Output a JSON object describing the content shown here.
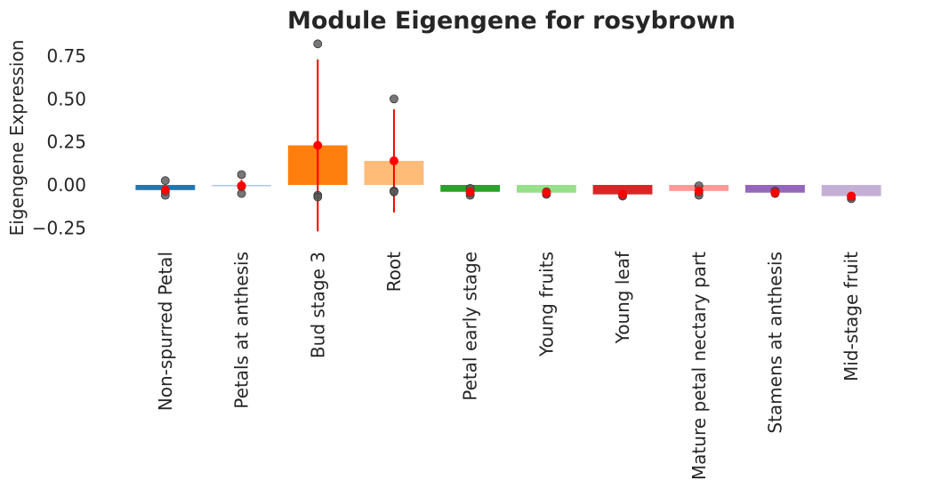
{
  "chart_data": {
    "type": "bar",
    "title": "Module Eigengene for rosybrown",
    "xlabel": "",
    "ylabel": "Eigengene Expression",
    "ylim": [
      -0.33,
      0.83
    ],
    "yticks": [
      -0.25,
      0.0,
      0.25,
      0.5,
      0.75
    ],
    "ytick_labels": [
      "−0.25",
      "0.00",
      "0.25",
      "0.50",
      "0.75"
    ],
    "grid": false,
    "categories": [
      "Non-spurred Petal",
      "Petals at anthesis",
      "Bud stage 3",
      "Root",
      "Petal early stage",
      "Young fruits",
      "Young leaf",
      "Mature petal nectary part",
      "Stamens at anthesis",
      "Mid-stage fruit"
    ],
    "values": [
      -0.03,
      -0.005,
      0.23,
      0.14,
      -0.04,
      -0.045,
      -0.055,
      -0.035,
      -0.045,
      -0.065
    ],
    "error": [
      0.005,
      0.035,
      0.5,
      0.3,
      0.01,
      0.005,
      0.005,
      0.01,
      0.005,
      0.01
    ],
    "points": [
      [
        0.025,
        -0.04,
        -0.06
      ],
      [
        0.06,
        -0.01,
        -0.05
      ],
      [
        0.82,
        -0.06,
        -0.07
      ],
      [
        0.5,
        -0.035,
        -0.04
      ],
      [
        -0.02,
        -0.05,
        -0.06
      ],
      [
        -0.04,
        -0.05,
        -0.055
      ],
      [
        -0.06,
        -0.065,
        -0.055
      ],
      [
        -0.005,
        -0.045,
        -0.06
      ],
      [
        -0.035,
        -0.05,
        -0.045
      ],
      [
        -0.065,
        -0.07,
        -0.08
      ]
    ],
    "bar_colors": [
      "#1f77b4",
      "#aec7e8",
      "#ff7f0e",
      "#ffbb78",
      "#2ca02c",
      "#98df8a",
      "#d62728",
      "#ff9896",
      "#9467bd",
      "#c5b0d5"
    ],
    "mean_marker_color": "#ff0000",
    "point_color": "#555555"
  }
}
